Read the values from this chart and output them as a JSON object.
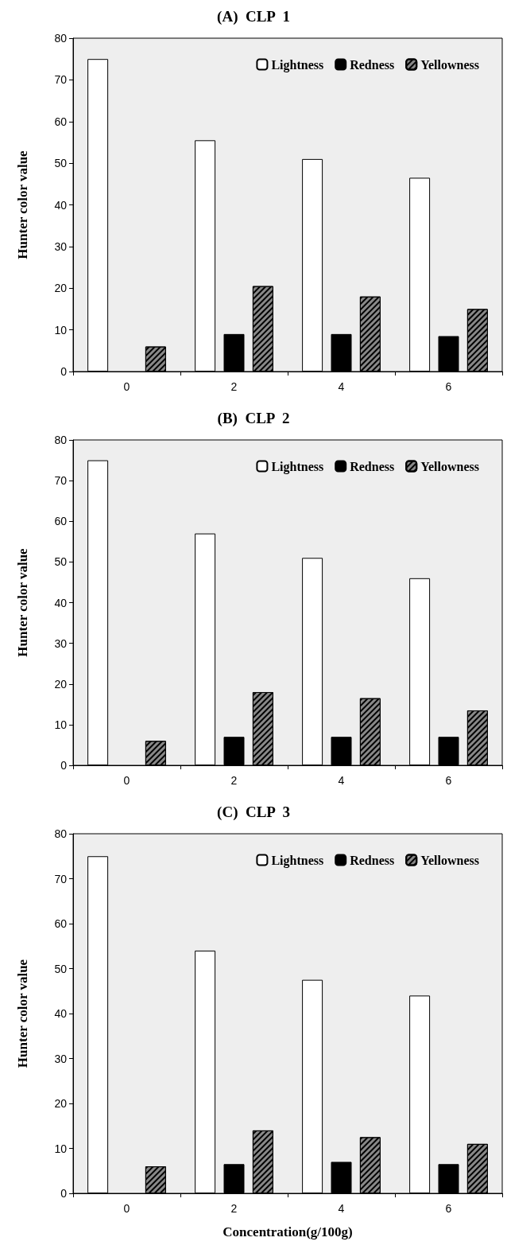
{
  "chart_data": [
    {
      "type": "bar",
      "title": "(A)  CLP  1",
      "ylabel": "Hunter color value",
      "categories": [
        "0",
        "2",
        "4",
        "6"
      ],
      "ylim": [
        0,
        80
      ],
      "yticks": [
        0,
        10,
        20,
        30,
        40,
        50,
        60,
        70,
        80
      ],
      "grid": false,
      "legend": "top right",
      "series": [
        {
          "name": "Lightness",
          "color": "#ffffff",
          "values": [
            75,
            55.5,
            51,
            46.5
          ]
        },
        {
          "name": "Redness",
          "color": "#000000",
          "values": [
            null,
            9,
            9,
            8.5
          ]
        },
        {
          "name": "Yellowness",
          "color": "#888888",
          "values": [
            6,
            20.5,
            18,
            15
          ]
        }
      ]
    },
    {
      "type": "bar",
      "title": "(B)  CLP  2",
      "ylabel": "Hunter color value",
      "categories": [
        "0",
        "2",
        "4",
        "6"
      ],
      "ylim": [
        0,
        80
      ],
      "yticks": [
        0,
        10,
        20,
        30,
        40,
        50,
        60,
        70,
        80
      ],
      "grid": false,
      "legend": "top right",
      "series": [
        {
          "name": "Lightness",
          "color": "#ffffff",
          "values": [
            75,
            57,
            51,
            46
          ]
        },
        {
          "name": "Redness",
          "color": "#000000",
          "values": [
            null,
            7,
            7,
            7
          ]
        },
        {
          "name": "Yellowness",
          "color": "#888888",
          "values": [
            6,
            18,
            16.5,
            13.5
          ]
        }
      ]
    },
    {
      "type": "bar",
      "title": "(C)  CLP  3",
      "ylabel": "Hunter color value",
      "xlabel": "Concentration(g/100g)",
      "categories": [
        "0",
        "2",
        "4",
        "6"
      ],
      "ylim": [
        0,
        80
      ],
      "yticks": [
        0,
        10,
        20,
        30,
        40,
        50,
        60,
        70,
        80
      ],
      "grid": false,
      "legend": "top right",
      "series": [
        {
          "name": "Lightness",
          "color": "#ffffff",
          "values": [
            75,
            54,
            47.5,
            44
          ]
        },
        {
          "name": "Redness",
          "color": "#000000",
          "values": [
            null,
            6.5,
            7,
            6.5
          ]
        },
        {
          "name": "Yellowness",
          "color": "#888888",
          "values": [
            6,
            14,
            12.5,
            11
          ]
        }
      ]
    }
  ]
}
